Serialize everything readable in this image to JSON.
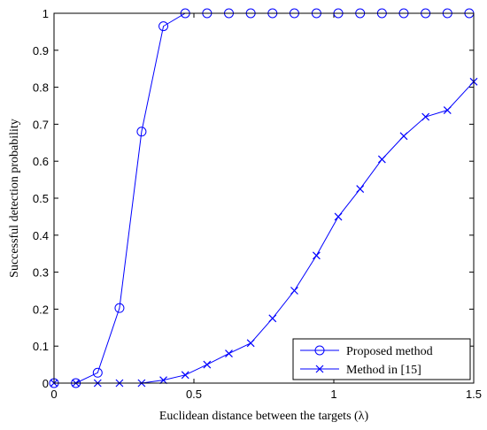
{
  "chart_data": {
    "type": "line",
    "xlabel": "Euclidean distance between the targets (λ)",
    "ylabel": "Successful detection probability",
    "xlim": [
      0,
      1.5
    ],
    "ylim": [
      0,
      1
    ],
    "x_ticks": [
      "0",
      "0.5",
      "1",
      "1.5"
    ],
    "y_ticks": [
      "0",
      "0.1",
      "0.2",
      "0.3",
      "0.4",
      "0.5",
      "0.6",
      "0.7",
      "0.8",
      "0.9",
      "1"
    ],
    "grid": false,
    "legend_position": "bottom-right",
    "series": [
      {
        "name": "Proposed method",
        "color": "#0000ff",
        "marker": "circle",
        "x": [
          0,
          0.078,
          0.156,
          0.234,
          0.313,
          0.391,
          0.469,
          0.547,
          0.625,
          0.703,
          0.781,
          0.859,
          0.938,
          1.016,
          1.094,
          1.172,
          1.25,
          1.328,
          1.406,
          1.484
        ],
        "y": [
          0,
          0,
          0.028,
          0.203,
          0.68,
          0.965,
          1.0,
          1.0,
          1.0,
          1.0,
          1.0,
          1.0,
          1.0,
          1.0,
          1.0,
          1.0,
          1.0,
          1.0,
          1.0,
          1.0
        ]
      },
      {
        "name": "Method in [15]",
        "color": "#0000ff",
        "marker": "x",
        "x": [
          0,
          0.078,
          0.156,
          0.234,
          0.313,
          0.391,
          0.469,
          0.547,
          0.625,
          0.703,
          0.781,
          0.859,
          0.938,
          1.016,
          1.094,
          1.172,
          1.25,
          1.328,
          1.406,
          1.5
        ],
        "y": [
          0,
          0,
          0,
          0,
          0,
          0.008,
          0.022,
          0.05,
          0.08,
          0.108,
          0.175,
          0.25,
          0.345,
          0.45,
          0.525,
          0.605,
          0.668,
          0.72,
          0.738,
          0.815
        ]
      }
    ]
  }
}
